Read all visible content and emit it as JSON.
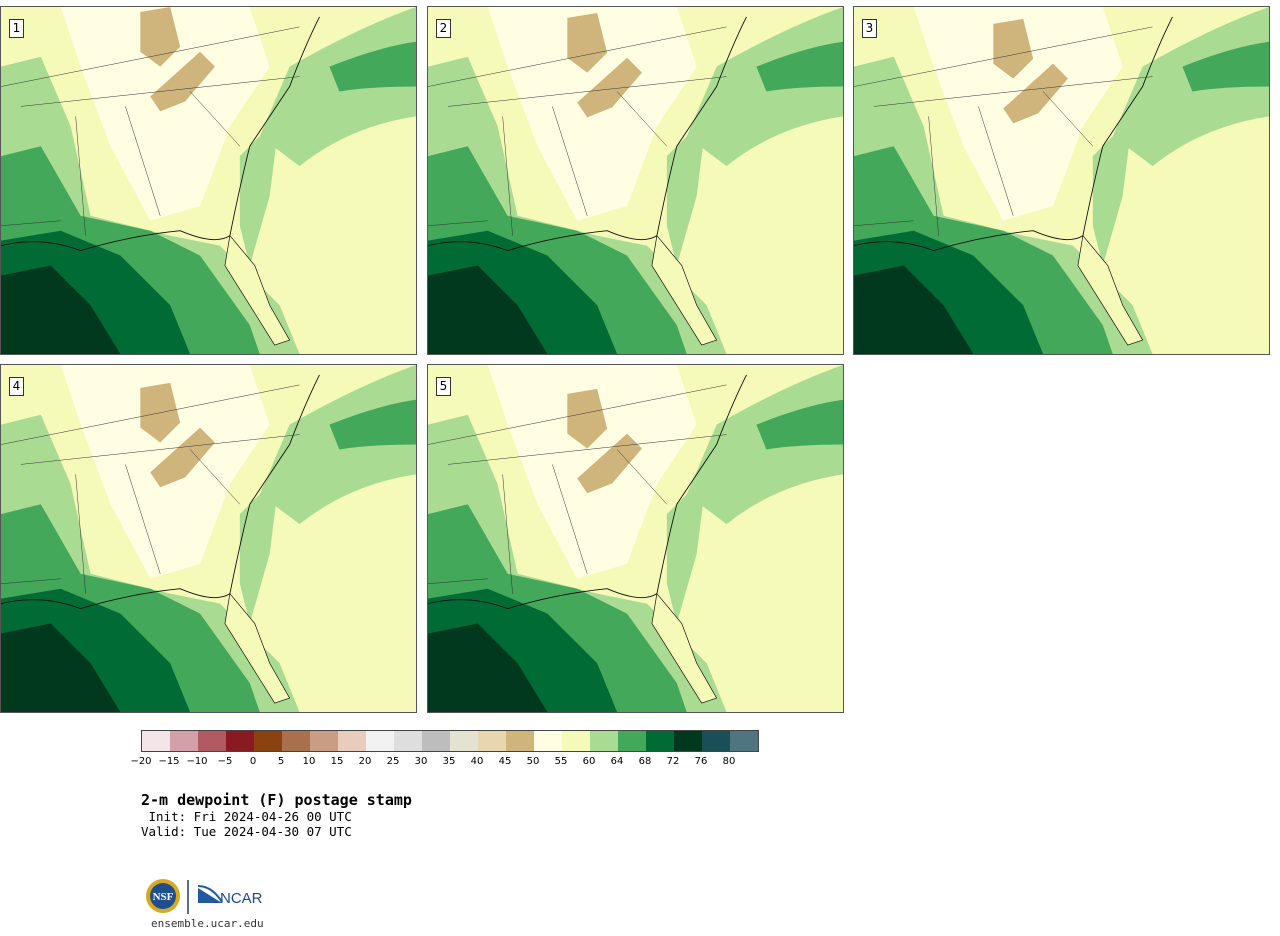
{
  "title": "2-m dewpoint (F) postage stamp",
  "init": " Init: Fri 2024-04-26 00 UTC",
  "valid": "Valid: Tue 2024-04-30 07 UTC",
  "site": "ensemble.ucar.edu",
  "logos": {
    "nsf": "NSF",
    "ncar": "NCAR"
  },
  "members": [
    {
      "label": "1"
    },
    {
      "label": "2"
    },
    {
      "label": "3"
    },
    {
      "label": "4"
    },
    {
      "label": "5"
    }
  ],
  "colorbar": {
    "ticks": [
      "−20",
      "−15",
      "−10",
      "−5",
      "0",
      "5",
      "10",
      "15",
      "20",
      "25",
      "30",
      "35",
      "40",
      "45",
      "50",
      "55",
      "60",
      "64",
      "68",
      "72",
      "76",
      "80"
    ],
    "colors": [
      "#f4e6e8",
      "#d4a0a8",
      "#b05a62",
      "#8a1a22",
      "#8a4210",
      "#a8704c",
      "#c99c84",
      "#e8ccbc",
      "#f2f2f2",
      "#dedede",
      "#bdbdbd",
      "#e4e2d0",
      "#e8d6b0",
      "#cfb47c",
      "#fffde2",
      "#f6fab8",
      "#a9dc92",
      "#43a85a",
      "#006b35",
      "#00391d",
      "#1a4f57",
      "#4f7680"
    ]
  }
}
